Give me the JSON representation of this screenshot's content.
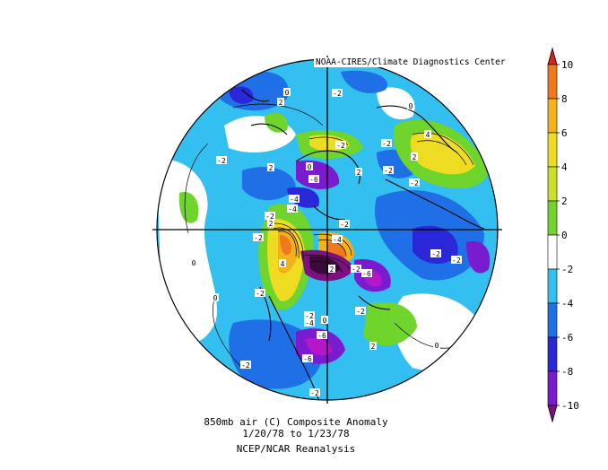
{
  "credit": "NOAA-CIRES/Climate Diagnostics Center",
  "caption": {
    "line1": "850mb air (C) Composite Anomaly",
    "line2": "1/20/78  to 1/23/78",
    "line3": "NCEP/NCAR Reanalysis"
  },
  "colorbar": {
    "ticks": [
      "10",
      "8",
      "6",
      "4",
      "2",
      "0",
      "-2",
      "-4",
      "-6",
      "-8",
      "-10"
    ],
    "colors": [
      "#d8241c",
      "#f0781e",
      "#f3b21a",
      "#eddc21",
      "#6fd42b",
      "#ffffff",
      "#33bff0",
      "#1f6fe6",
      "#2a27d8",
      "#7a1bd0",
      "#b516c8",
      "#7d1180"
    ],
    "pole_colors": {
      "top": "#d8241c",
      "bottom": "#7d1180"
    }
  },
  "contour_labels": [
    "-2",
    "2",
    "-2",
    "4",
    "-2",
    "2",
    "0",
    "-2",
    "2",
    "-6",
    "-4",
    "-2",
    "2",
    "-4",
    "-2",
    "-2",
    "0",
    "-2",
    "-6",
    "-2",
    "-2",
    "-4",
    "-6",
    "0",
    "-2",
    "2",
    "-2",
    "-6",
    "-2",
    "0",
    "-4",
    "-2",
    "4",
    "0",
    "2",
    "-2",
    "0",
    "-2",
    "-2",
    "0",
    "2"
  ]
}
